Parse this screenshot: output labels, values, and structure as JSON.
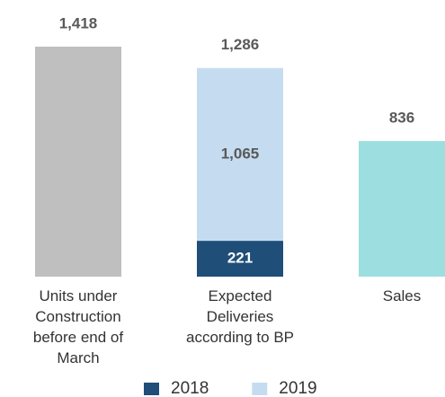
{
  "chart_data": {
    "type": "bar",
    "stacked": true,
    "categories": [
      "Units under Construction before end of March",
      "Expected Deliveries according to BP",
      "Sales"
    ],
    "series": [
      {
        "color": "#bfbfbf",
        "values": [
          1418,
          null,
          null
        ],
        "value_labels": [
          "1,418",
          null,
          null
        ]
      },
      {
        "name": "2018",
        "color": "#1f4e79",
        "values": [
          null,
          221,
          null
        ]
      },
      {
        "name": "2019",
        "color": "#c5dcf0",
        "values": [
          null,
          1065,
          null
        ],
        "value_labels": [
          null,
          "1,065",
          null
        ]
      },
      {
        "color": "#9ddfe0",
        "values": [
          null,
          null,
          836
        ]
      }
    ],
    "totals": [
      null,
      1286,
      null
    ],
    "total_labels": [
      null,
      "1,286",
      null
    ],
    "ylim": [
      0,
      1700
    ],
    "legend": "bottom"
  }
}
